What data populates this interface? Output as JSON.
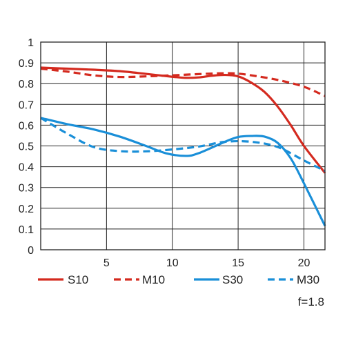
{
  "chart_data": {
    "type": "line",
    "xlim": [
      0,
      21.6
    ],
    "ylim": [
      0,
      1
    ],
    "x_ticks": [
      5,
      10,
      15,
      20
    ],
    "x_tick_labels": [
      "5",
      "10",
      "15",
      "20"
    ],
    "y_ticks": [
      0,
      0.1,
      0.2,
      0.3,
      0.4,
      0.5,
      0.6,
      0.7,
      0.8,
      0.9,
      1
    ],
    "y_tick_labels": [
      "0",
      "0.1",
      "0.2",
      "0.3",
      "0.4",
      "0.5",
      "0.6",
      "0.7",
      "0.8",
      "0.9",
      "1"
    ],
    "grid": true,
    "legend_position": "bottom",
    "series": [
      {
        "name": "S10",
        "color": "#d42a1f",
        "dash": "solid",
        "x": [
          0,
          2,
          4,
          6,
          8,
          10,
          11,
          12,
          13,
          14,
          15,
          16,
          17,
          18,
          19,
          20,
          21.6
        ],
        "y": [
          0.877,
          0.872,
          0.867,
          0.86,
          0.847,
          0.833,
          0.828,
          0.83,
          0.838,
          0.842,
          0.835,
          0.805,
          0.76,
          0.69,
          0.6,
          0.5,
          0.37
        ]
      },
      {
        "name": "M10",
        "color": "#d42a1f",
        "dash": "dashed",
        "x": [
          0,
          2,
          4,
          6,
          8,
          10,
          12,
          14,
          15,
          16,
          18,
          20,
          21.6
        ],
        "y": [
          0.872,
          0.858,
          0.84,
          0.832,
          0.835,
          0.84,
          0.846,
          0.85,
          0.848,
          0.84,
          0.818,
          0.785,
          0.74
        ]
      },
      {
        "name": "S30",
        "color": "#1a8fd8",
        "dash": "solid",
        "x": [
          0,
          2,
          4,
          6,
          8,
          9.5,
          11,
          12,
          14,
          15,
          16,
          17,
          18,
          19,
          20,
          21.6
        ],
        "y": [
          0.635,
          0.605,
          0.58,
          0.545,
          0.5,
          0.465,
          0.452,
          0.465,
          0.52,
          0.543,
          0.548,
          0.545,
          0.515,
          0.44,
          0.32,
          0.115
        ]
      },
      {
        "name": "M30",
        "color": "#1a8fd8",
        "dash": "dashed",
        "x": [
          0,
          2,
          4,
          6,
          8,
          10,
          12,
          14,
          16,
          18,
          20,
          21.6
        ],
        "y": [
          0.635,
          0.56,
          0.495,
          0.475,
          0.474,
          0.483,
          0.497,
          0.52,
          0.52,
          0.495,
          0.43,
          0.38
        ]
      }
    ],
    "annotation": "f=1.8"
  }
}
